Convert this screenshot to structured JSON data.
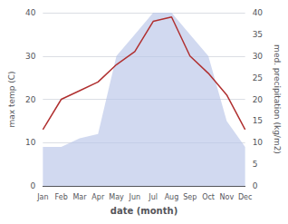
{
  "chart_data": {
    "type": "line",
    "categories": [
      "Jan",
      "Feb",
      "Mar",
      "Apr",
      "May",
      "Jun",
      "Jul",
      "Aug",
      "Sep",
      "Oct",
      "Nov",
      "Dec"
    ],
    "xlabel": "date (month)",
    "ylabel": "max temp (C)",
    "y2label": "med. precipitation (kg/m2)",
    "ylim": [
      0,
      40
    ],
    "yticks": [
      0,
      10,
      20,
      30,
      40
    ],
    "y2lim": [
      0,
      40
    ],
    "y2ticks": [
      0,
      5,
      10,
      15,
      20,
      25,
      30,
      35,
      40
    ],
    "grid": true,
    "series": [
      {
        "type": "area",
        "axis": "y2",
        "color": "#b8c4e8",
        "values": [
          9,
          9,
          11,
          12,
          30,
          35,
          40,
          40,
          35,
          30,
          15,
          9
        ]
      },
      {
        "type": "line",
        "color": "#b03030",
        "values": [
          13,
          20,
          22,
          24,
          28,
          31,
          38,
          39,
          30,
          26,
          21,
          13
        ]
      }
    ]
  }
}
